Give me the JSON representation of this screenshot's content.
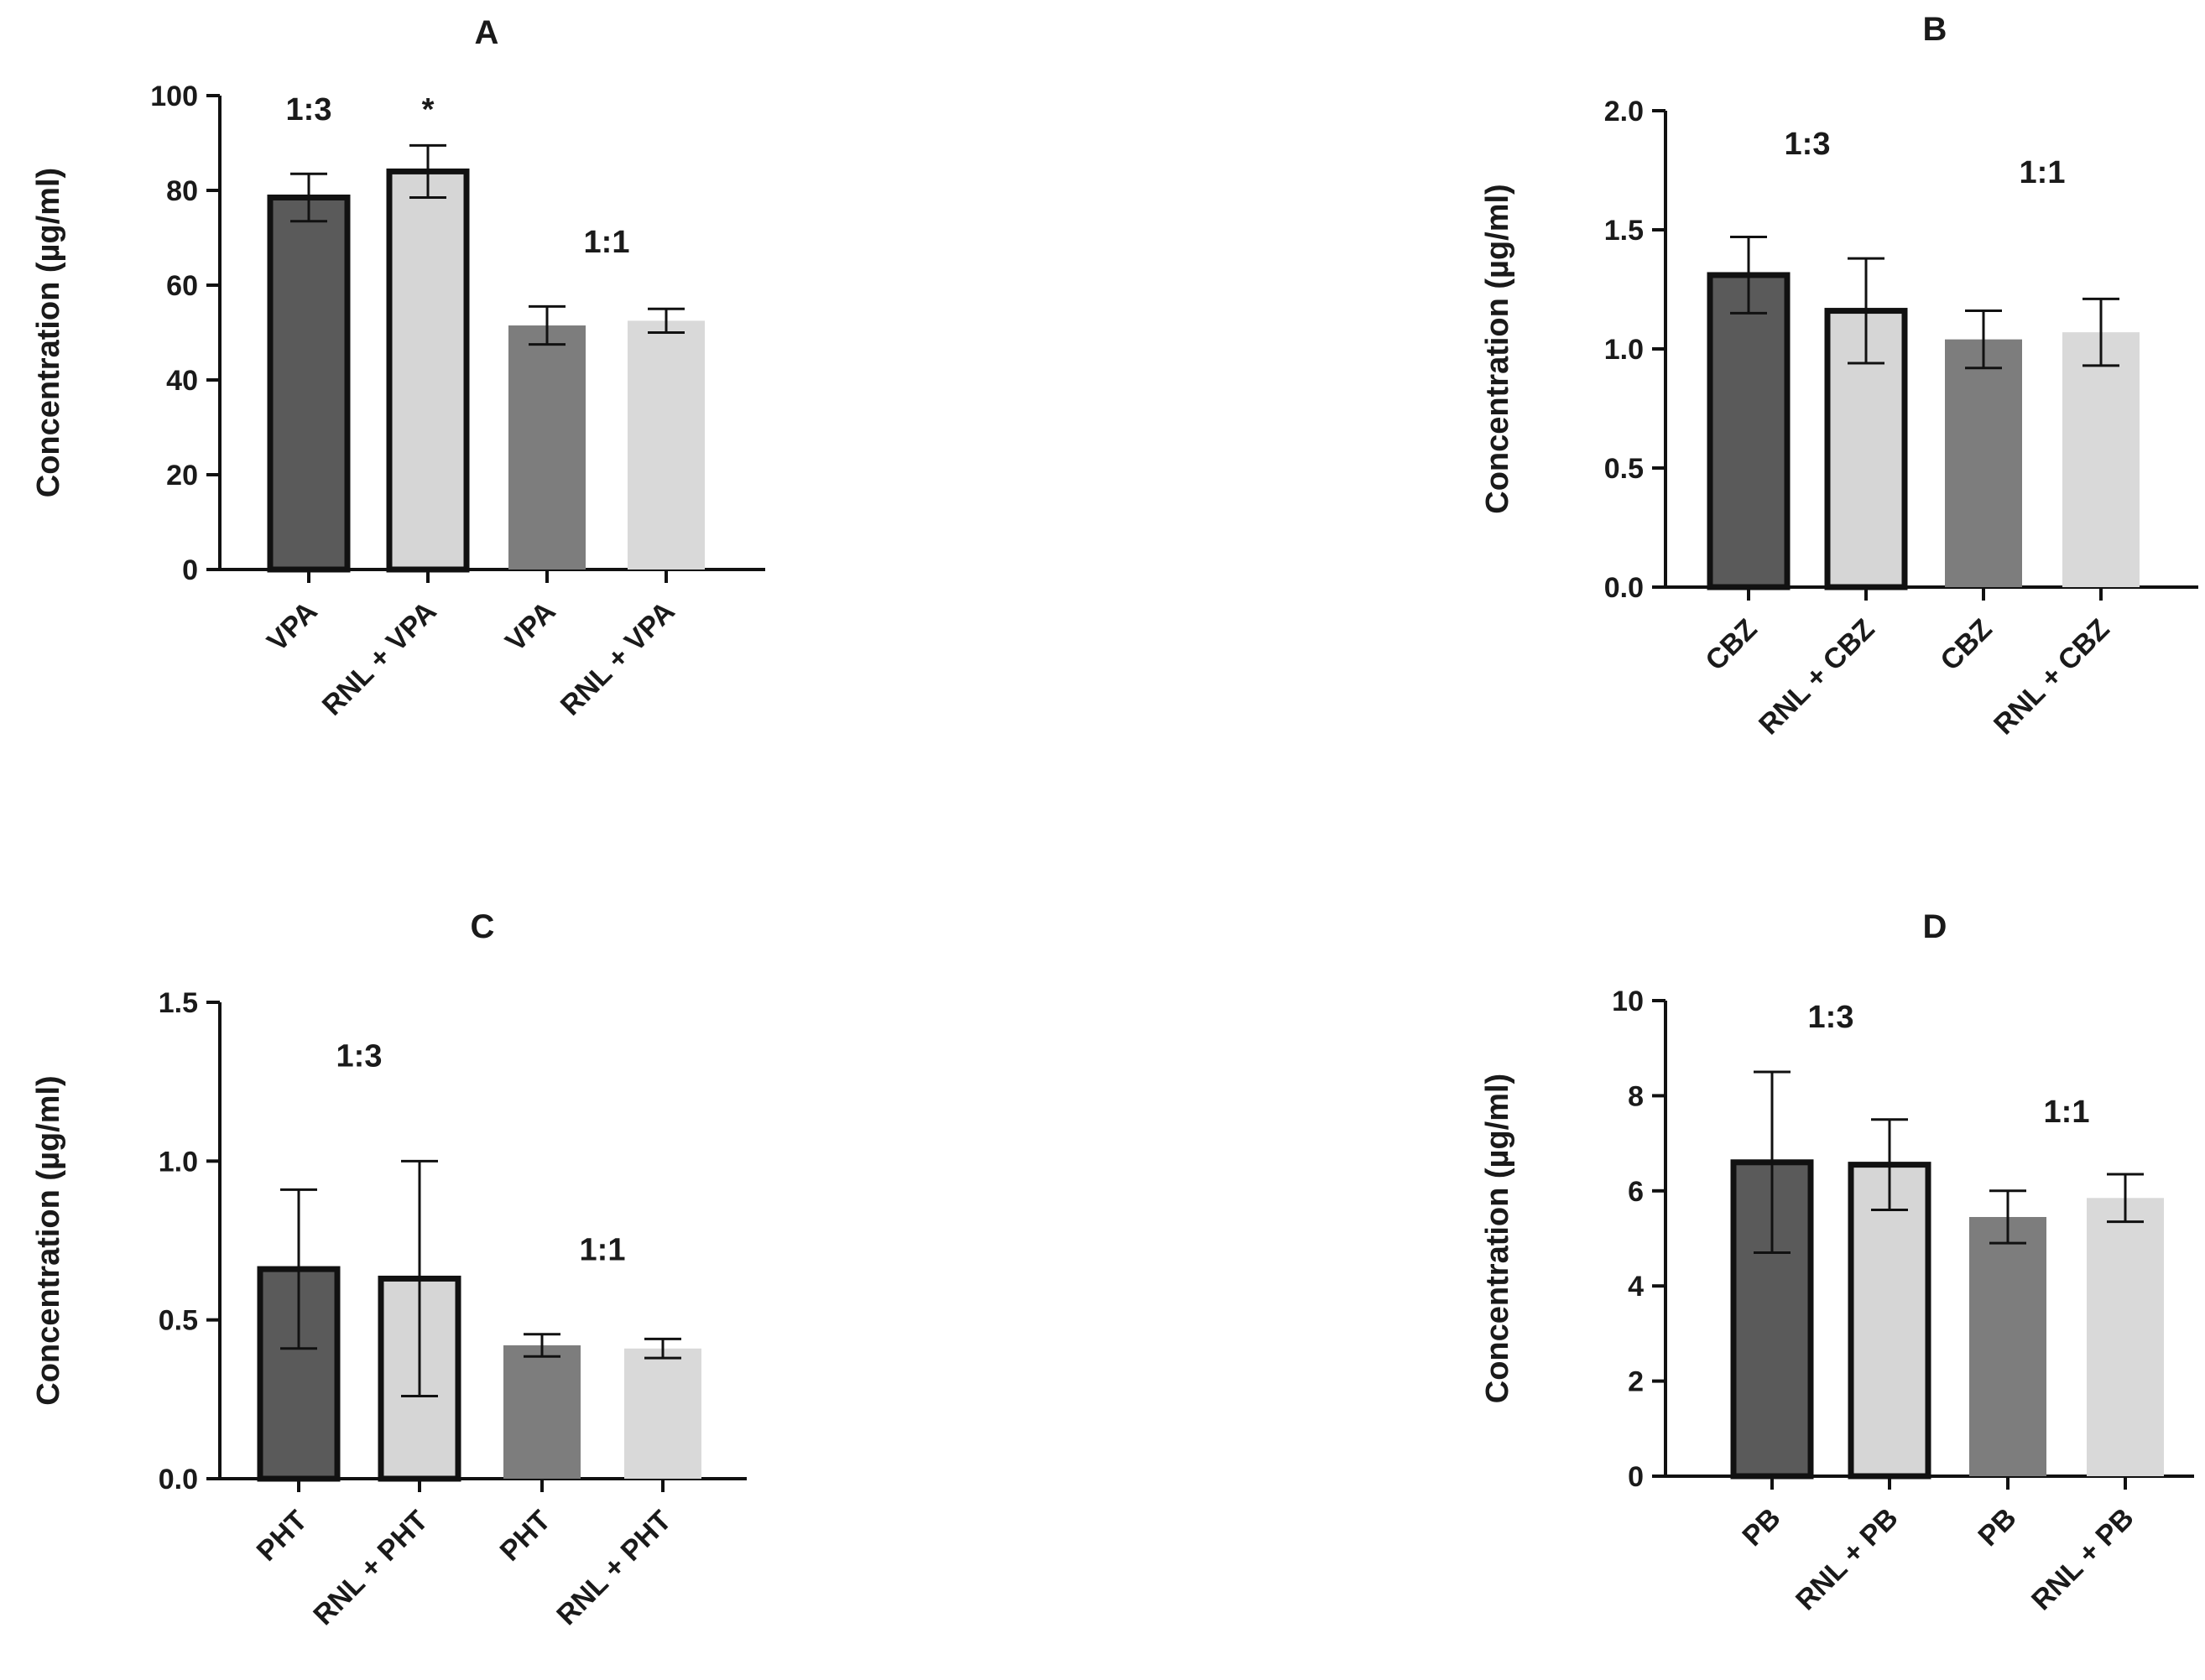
{
  "figure": {
    "y_axis_label": "Concentration (µg/ml)"
  },
  "colors": {
    "dark": "#5a5a5a",
    "light": "#d6d6d6",
    "mid": "#7d7d7d",
    "pale": "#d9d9d9",
    "stroke": "#111111"
  },
  "chart_data": [
    {
      "panel": "A",
      "type": "bar",
      "title": "A",
      "ylabel": "Concentration (µg/ml)",
      "ylim": [
        0,
        100
      ],
      "yticks": [
        0,
        20,
        40,
        60,
        80,
        100
      ],
      "categories": [
        "VPA",
        "RNL + VPA",
        "VPA",
        "RNL + VPA"
      ],
      "values": [
        78.5,
        84,
        51.5,
        52.5
      ],
      "errors": [
        5,
        5.5,
        4,
        2.5
      ],
      "bar_styles": [
        "dark-outlined",
        "light-outlined",
        "mid",
        "pale"
      ],
      "annotations": [
        {
          "text": "1:3",
          "at_category": 0,
          "y": 97
        },
        {
          "text": "*",
          "at_category": 1,
          "y": 97
        },
        {
          "text": "1:1",
          "at_category": 2.5,
          "y": 69
        }
      ]
    },
    {
      "panel": "B",
      "type": "bar",
      "title": "B",
      "ylabel": "Concentration (µg/ml)",
      "ylim": [
        0,
        2.0
      ],
      "yticks": [
        "0.0",
        "0.5",
        "1.0",
        "1.5",
        "2.0"
      ],
      "categories": [
        "CBZ",
        "RNL + CBZ",
        "CBZ",
        "RNL + CBZ"
      ],
      "values": [
        1.31,
        1.16,
        1.04,
        1.07
      ],
      "errors": [
        0.16,
        0.22,
        0.12,
        0.14
      ],
      "bar_styles": [
        "dark-outlined",
        "light-outlined",
        "mid",
        "pale"
      ],
      "annotations": [
        {
          "text": "1:3",
          "at_category": 0.5,
          "y": 1.86
        },
        {
          "text": "1:1",
          "at_category": 2.5,
          "y": 1.74
        }
      ]
    },
    {
      "panel": "C",
      "type": "bar",
      "title": "C",
      "ylabel": "Concentration (µg/ml)",
      "ylim": [
        0,
        1.5
      ],
      "yticks": [
        "0.0",
        "0.5",
        "1.0",
        "1.5"
      ],
      "categories": [
        "PHT",
        "RNL + PHT",
        "PHT",
        "RNL + PHT"
      ],
      "values": [
        0.66,
        0.63,
        0.42,
        0.41
      ],
      "errors": [
        0.25,
        0.37,
        0.035,
        0.03
      ],
      "bar_styles": [
        "dark-outlined",
        "light-outlined",
        "mid",
        "pale"
      ],
      "annotations": [
        {
          "text": "1:3",
          "at_category": 0.5,
          "y": 1.33
        },
        {
          "text": "1:1",
          "at_category": 2.5,
          "y": 0.72
        }
      ]
    },
    {
      "panel": "D",
      "type": "bar",
      "title": "D",
      "ylabel": "Concentration (µg/ml)",
      "ylim": [
        0,
        10
      ],
      "yticks": [
        0,
        2,
        4,
        6,
        8,
        10
      ],
      "categories": [
        "PB",
        "RNL + PB",
        "PB",
        "RNL + PB"
      ],
      "values": [
        6.6,
        6.55,
        5.45,
        5.85
      ],
      "errors": [
        1.9,
        0.95,
        0.55,
        0.5
      ],
      "bar_styles": [
        "dark-outlined",
        "light-outlined",
        "mid",
        "pale"
      ],
      "annotations": [
        {
          "text": "1:3",
          "at_category": 0.5,
          "y": 9.65
        },
        {
          "text": "1:1",
          "at_category": 2.5,
          "y": 7.65
        }
      ]
    }
  ]
}
